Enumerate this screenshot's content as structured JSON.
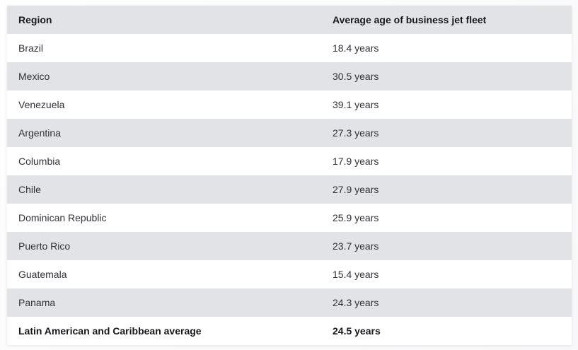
{
  "table": {
    "columns": {
      "region": "Region",
      "value": "Average age of business jet fleet"
    },
    "rows": [
      {
        "region": "Brazil",
        "value": "18.4 years"
      },
      {
        "region": "Mexico",
        "value": "30.5 years"
      },
      {
        "region": "Venezuela",
        "value": "39.1 years"
      },
      {
        "region": "Argentina",
        "value": "27.3 years"
      },
      {
        "region": "Columbia",
        "value": "17.9 years"
      },
      {
        "region": "Chile",
        "value": "27.9 years"
      },
      {
        "region": "Dominican Republic",
        "value": "25.9 years"
      },
      {
        "region": "Puerto Rico",
        "value": "23.7 years"
      },
      {
        "region": "Guatemala",
        "value": "15.4 years"
      },
      {
        "region": "Panama",
        "value": "24.3 years"
      },
      {
        "region": "Latin American and Caribbean average",
        "value": "24.5 years"
      }
    ]
  },
  "colors": {
    "header_bg": "#e1e3e7",
    "stripe_bg": "#e1e3e7",
    "row_bg": "#ffffff",
    "header_text": "#181a1f",
    "body_text": "#2f3238",
    "page_bg": "#fdfdfe"
  },
  "chart_data": {
    "type": "table",
    "title": "Average age of business jet fleet",
    "categories": [
      "Brazil",
      "Mexico",
      "Venezuela",
      "Argentina",
      "Columbia",
      "Chile",
      "Dominican Republic",
      "Puerto Rico",
      "Guatemala",
      "Panama",
      "Latin American and Caribbean average"
    ],
    "values": [
      18.4,
      30.5,
      39.1,
      27.3,
      17.9,
      27.9,
      25.9,
      23.7,
      15.4,
      24.3,
      24.5
    ],
    "unit": "years",
    "columns": [
      "Region",
      "Average age of business jet fleet"
    ]
  }
}
